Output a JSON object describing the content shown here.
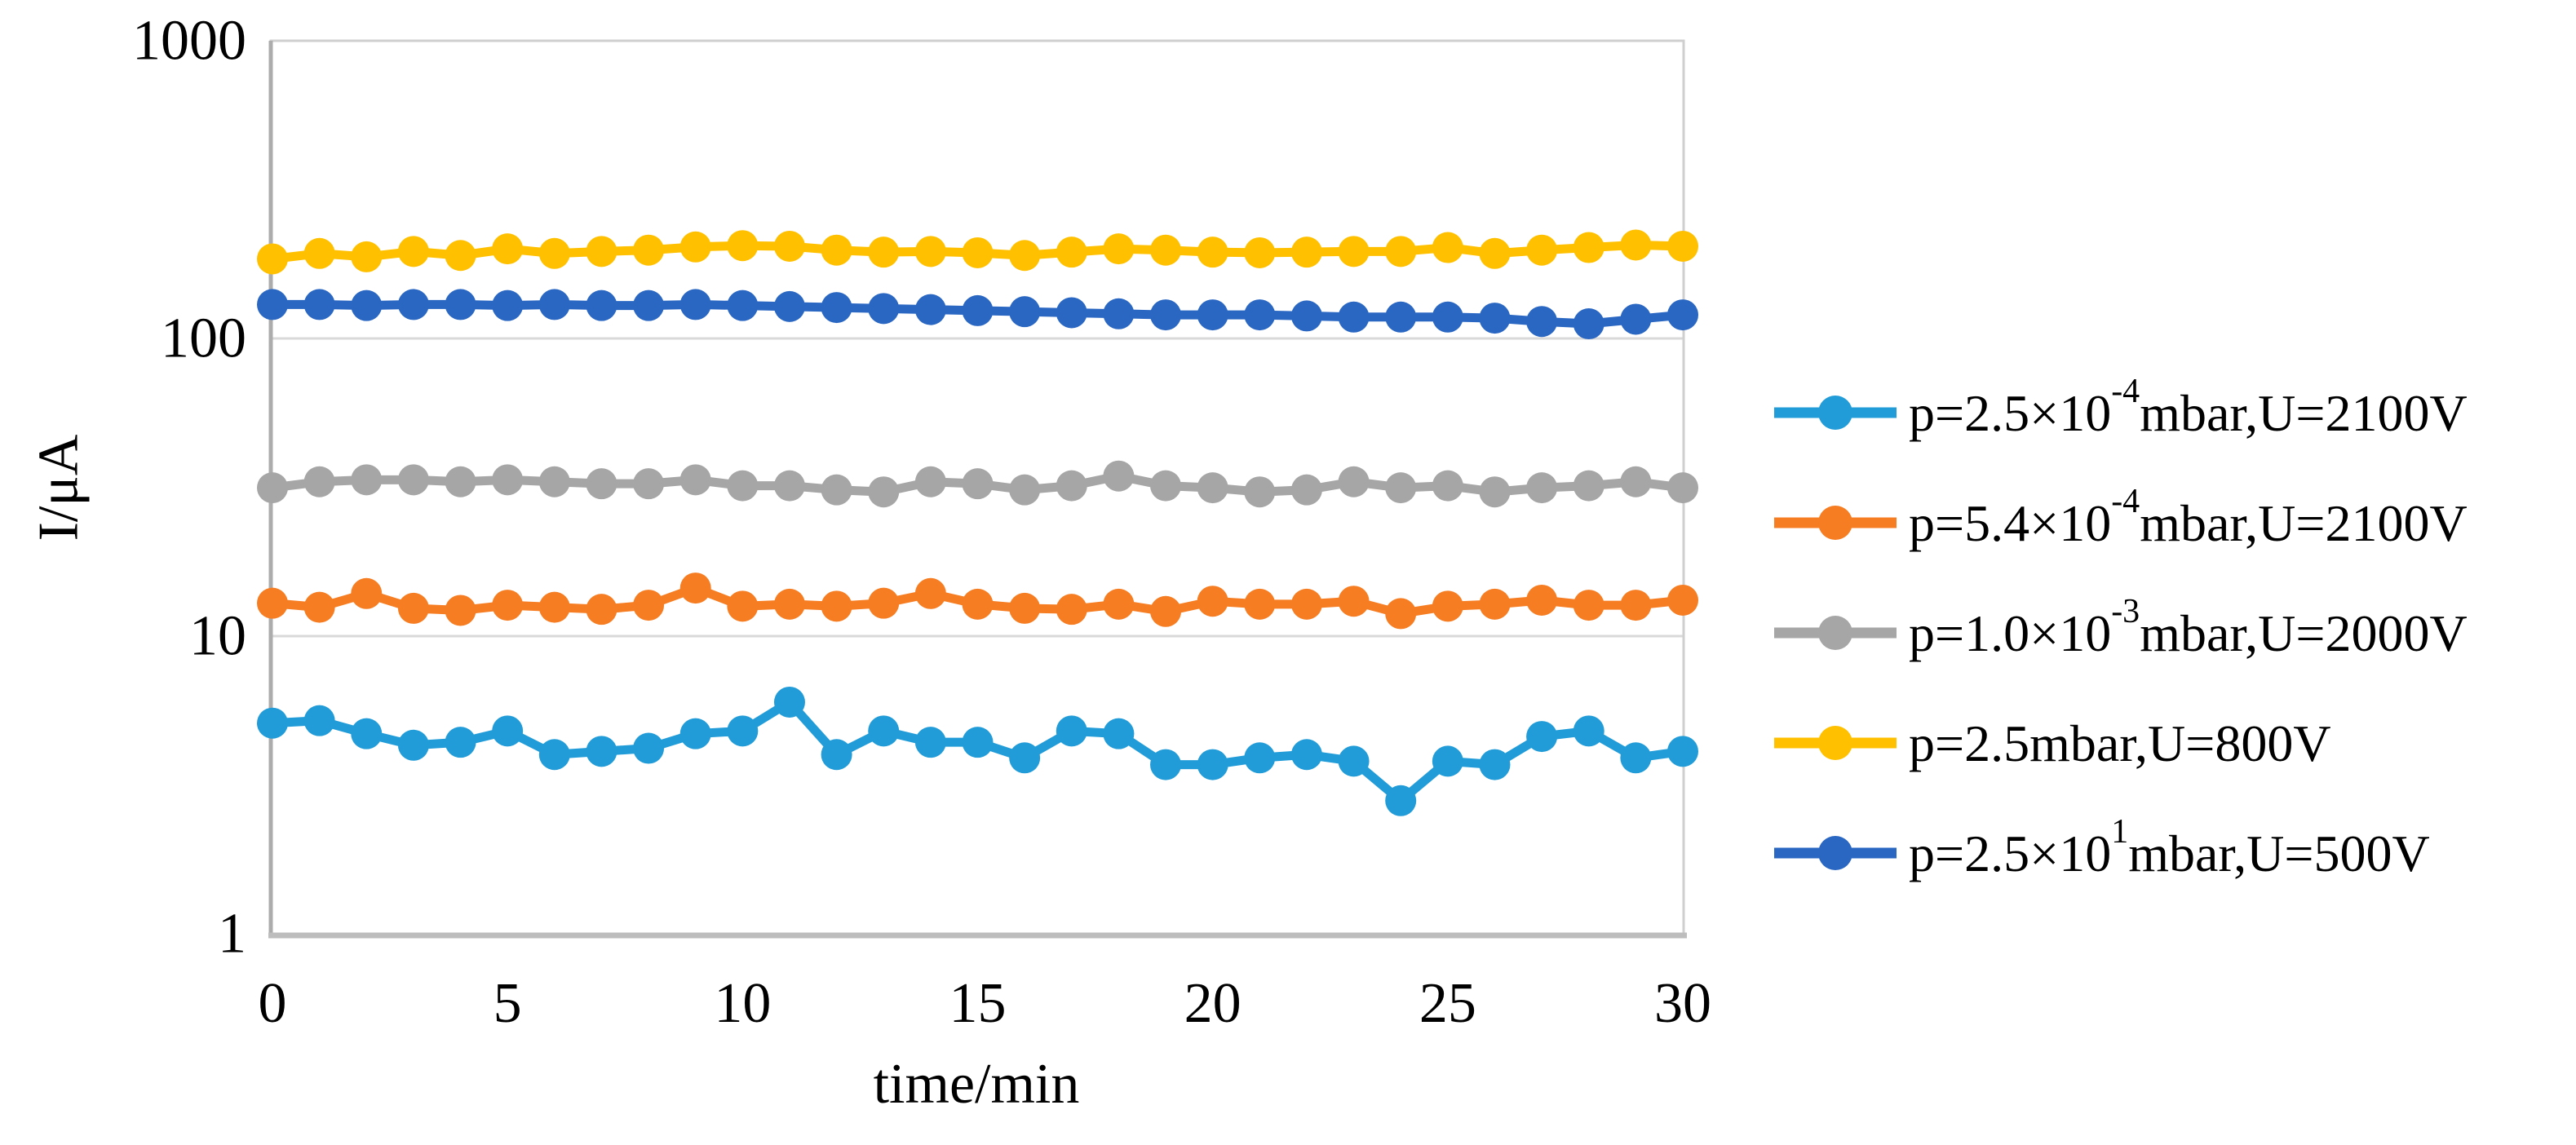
{
  "chart_data": {
    "type": "line",
    "title": "",
    "xlabel": "time/min",
    "ylabel": "I/μA",
    "y_scale": "log10",
    "ylim": [
      1,
      1000
    ],
    "xlim": [
      0,
      30
    ],
    "x_ticks": [
      "0",
      "5",
      "10",
      "15",
      "20",
      "25",
      "30"
    ],
    "y_ticks": [
      "1000",
      "100",
      "10",
      "1"
    ],
    "y_tick_values": [
      1000,
      100,
      10,
      1
    ],
    "y_gridline_values": [
      100,
      10
    ],
    "grid": "horizontal-only",
    "legend_position": "right-outside",
    "x": [
      0,
      1,
      2,
      3,
      4,
      5,
      6,
      7,
      8,
      9,
      10,
      11,
      12,
      13,
      14,
      15,
      16,
      17,
      18,
      19,
      20,
      21,
      22,
      23,
      24,
      25,
      26,
      27,
      28,
      29,
      30
    ],
    "series": [
      {
        "name": "p=2.5×10⁻⁴mbar,U=2100V",
        "label_parts": [
          {
            "t": "p=2.5×10"
          },
          {
            "t": "-4",
            "sup": true
          },
          {
            "t": "mbar,U=2100V"
          }
        ],
        "color": "#219CD8",
        "values": [
          5.1,
          5.2,
          4.7,
          4.3,
          4.4,
          4.8,
          4.0,
          4.1,
          4.2,
          4.7,
          4.8,
          6.0,
          4.0,
          4.8,
          4.4,
          4.4,
          3.9,
          4.8,
          4.7,
          3.7,
          3.7,
          3.9,
          4.0,
          3.8,
          2.8,
          3.8,
          3.7,
          4.6,
          4.8,
          3.9,
          4.1
        ]
      },
      {
        "name": "p=5.4×10⁻⁴mbar,U=2100V",
        "label_parts": [
          {
            "t": "p=5.4×10"
          },
          {
            "t": "-4",
            "sup": true
          },
          {
            "t": "mbar,U=2100V"
          }
        ],
        "color": "#F67D22",
        "values": [
          12.9,
          12.5,
          13.9,
          12.4,
          12.2,
          12.7,
          12.5,
          12.3,
          12.7,
          14.5,
          12.6,
          12.8,
          12.6,
          12.9,
          13.9,
          12.8,
          12.4,
          12.3,
          12.8,
          12.1,
          13.1,
          12.8,
          12.8,
          13.1,
          11.9,
          12.6,
          12.8,
          13.2,
          12.7,
          12.7,
          13.2
        ]
      },
      {
        "name": "p=1.0×10⁻³mbar,U=2000V",
        "label_parts": [
          {
            "t": "p=1.0×10"
          },
          {
            "t": "-3",
            "sup": true
          },
          {
            "t": "mbar,U=2000V"
          }
        ],
        "color": "#A6A6A6",
        "values": [
          31.5,
          33,
          33.5,
          33.5,
          33,
          33.5,
          33,
          32.5,
          32.5,
          33.5,
          32,
          32,
          31,
          30.5,
          33,
          32.5,
          31,
          32,
          34.5,
          32,
          31.5,
          30.5,
          31,
          33,
          31.5,
          32,
          30.5,
          31.5,
          32,
          33,
          31.5
        ]
      },
      {
        "name": "p=2.5mbar,U=800V",
        "label_parts": [
          {
            "t": "p=2.5mbar,U=800V"
          }
        ],
        "color": "#FFC000",
        "values": [
          185,
          193,
          188,
          196,
          190,
          200,
          193,
          196,
          198,
          203,
          205,
          204,
          198,
          195,
          196,
          194,
          190,
          195,
          200,
          198,
          195,
          194,
          195,
          196,
          196,
          202,
          193,
          198,
          202,
          206,
          204
        ]
      },
      {
        "name": "p=2.5×10¹mbar,U=500V",
        "label_parts": [
          {
            "t": "p=2.5×10"
          },
          {
            "t": "1",
            "sup": true
          },
          {
            "t": "mbar,U=500V"
          }
        ],
        "color": "#2A67C3",
        "values": [
          130,
          130,
          129,
          130,
          130,
          129,
          130,
          129,
          129,
          130,
          129,
          128,
          127,
          126,
          125,
          124,
          123,
          122,
          121,
          120,
          120,
          120,
          119,
          118,
          118,
          118,
          117,
          114,
          112,
          116,
          120
        ]
      }
    ]
  },
  "style_colors": {
    "gridline": "#D9D9D9",
    "frame": "#CFCFCF",
    "y_axis_line": "#ACACAC",
    "x_axis_line": "#BDBDBD",
    "text": "#000000",
    "background": "#FFFFFF"
  }
}
